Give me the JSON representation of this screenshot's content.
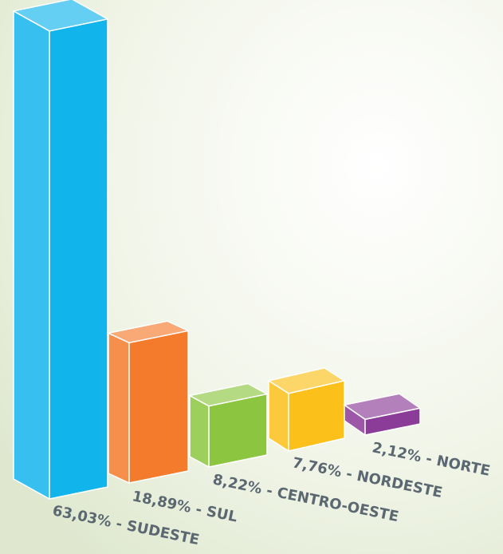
{
  "chart_data": {
    "type": "bar3d",
    "values": [
      63.03,
      18.89,
      8.22,
      7.76,
      2.12
    ],
    "value_labels": [
      "63,03% - SUDESTE",
      "18,89% - SUL",
      "8,22% - CENTRO-OESTE",
      "7,76% - NORDESTE",
      "2,12% - NORTE"
    ],
    "colors": [
      "#12b4ec",
      "#f47a2c",
      "#8cc640",
      "#fcc01a",
      "#8b3b98"
    ]
  }
}
